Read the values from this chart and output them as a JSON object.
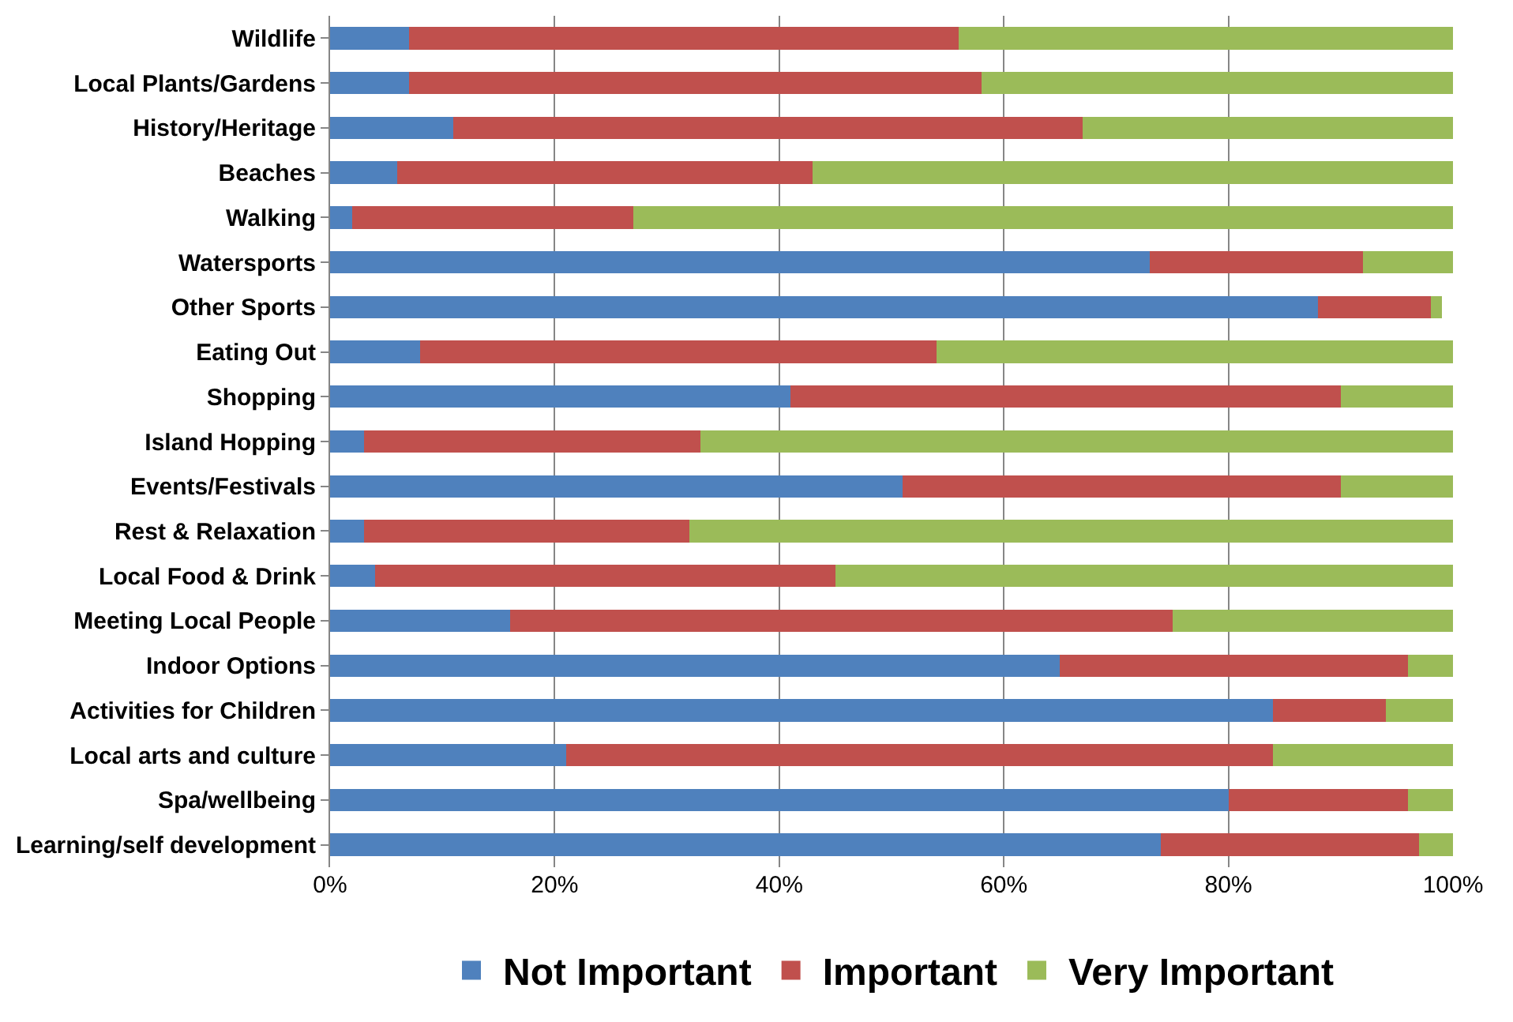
{
  "chart_data": {
    "type": "bar",
    "orientation": "horizontal",
    "stacked": true,
    "categories": [
      "Wildlife",
      "Local Plants/Gardens",
      "History/Heritage",
      "Beaches",
      "Walking",
      "Watersports",
      "Other Sports",
      "Eating Out",
      "Shopping",
      "Island Hopping",
      "Events/Festivals",
      "Rest & Relaxation",
      "Local Food & Drink",
      "Meeting Local People",
      "Indoor Options",
      "Activities for Children",
      "Local arts and culture",
      "Spa/wellbeing",
      "Learning/self development"
    ],
    "series": [
      {
        "name": "Not Important",
        "color": "#4f81bd",
        "values": [
          7,
          7,
          11,
          6,
          2,
          73,
          88,
          8,
          41,
          3,
          51,
          3,
          4,
          16,
          65,
          84,
          21,
          80,
          74
        ]
      },
      {
        "name": "Important",
        "color": "#c0504d",
        "values": [
          49,
          51,
          56,
          37,
          25,
          19,
          10,
          46,
          49,
          30,
          39,
          29,
          41,
          59,
          31,
          10,
          63,
          16,
          23
        ]
      },
      {
        "name": "Very Important",
        "color": "#9bbb59",
        "values": [
          44,
          42,
          33,
          57,
          73,
          8,
          1,
          46,
          10,
          67,
          10,
          68,
          55,
          25,
          4,
          6,
          16,
          4,
          3
        ]
      }
    ],
    "xlim": [
      0,
      100
    ],
    "xticks": [
      {
        "value": 0,
        "label": "0%"
      },
      {
        "value": 20,
        "label": "20%"
      },
      {
        "value": 40,
        "label": "40%"
      },
      {
        "value": 60,
        "label": "60%"
      },
      {
        "value": 80,
        "label": "80%"
      },
      {
        "value": 100,
        "label": "100%"
      }
    ],
    "grid": "x",
    "legend": "bottom"
  }
}
